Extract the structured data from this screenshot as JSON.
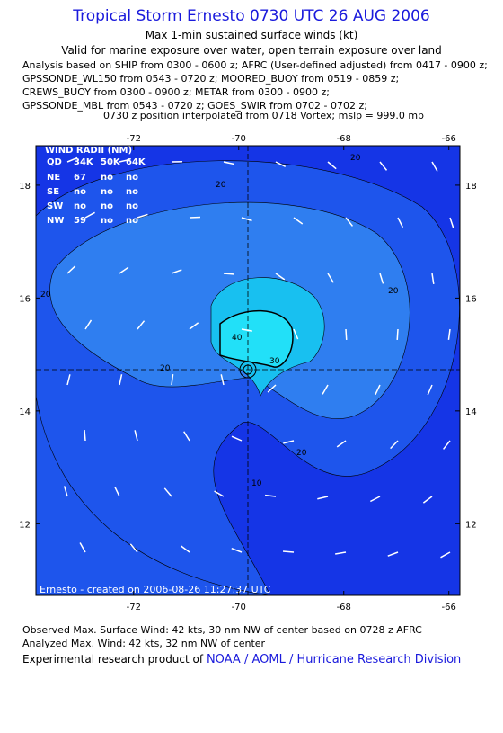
{
  "header": {
    "title": "Tropical Storm Ernesto 0730 UTC 26 AUG 2006",
    "subtitle": "Max 1-min sustained surface winds (kt)",
    "validity": "Valid for marine exposure over water, open terrain exposure over land",
    "analysis_lines": [
      "Analysis based on  SHIP from 0300 - 0600 z;  AFRC (User-defined adjusted) from 0417 - 0900 z;",
      "GPSSONDE_WL150 from 0543 - 0720 z;  MOORED_BUOY from 0519 - 0859 z;",
      "CREWS_BUOY from 0300 - 0900 z;  METAR from 0300 - 0900 z;",
      "GPSSONDE_MBL from 0543 - 0720 z;  GOES_SWIR from 0702 - 0702 z;",
      "0730 z position interpolated from 0718 Vortex; mslp = 999.0 mb"
    ]
  },
  "map": {
    "xlim": [
      -73.86,
      -65.79
    ],
    "ylim": [
      10.73,
      18.7
    ],
    "xticks": [
      -72,
      -70,
      -68,
      -66
    ],
    "yticks": [
      12,
      14,
      16,
      18
    ],
    "wind_radii": {
      "title": "WIND RADII (NM)",
      "header": [
        "QD",
        "34K",
        "50K",
        "64K"
      ],
      "rows": [
        [
          "NE",
          "67",
          "no",
          "no"
        ],
        [
          "SE",
          "no",
          "no",
          "no"
        ],
        [
          "SW",
          "no",
          "no",
          "no"
        ],
        [
          "NW",
          "59",
          "no",
          "no"
        ]
      ]
    },
    "contour_labels": [
      "20",
      "20",
      "20",
      "20",
      "30",
      "40",
      "20",
      "10",
      "20"
    ],
    "credit": "Ernesto - created on 2006-08-26 11:27:37 UTC"
  },
  "footer": {
    "observed": "Observed Max. Surface Wind: 42 kts, 30 nm NW of center based on 0728 z AFRC",
    "analyzed": "Analyzed Max. Wind: 42 kts, 32 nm NW of center",
    "product_prefix": "Experimental research product of",
    "product_link": "NOAA / AOML / Hurricane Research Division"
  }
}
